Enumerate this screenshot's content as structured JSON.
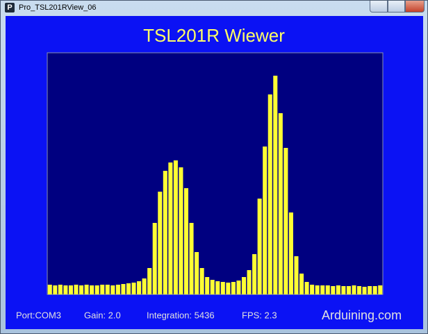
{
  "window": {
    "title": "Pro_TSL201RView_06",
    "icon": "P"
  },
  "chart_data": {
    "type": "bar",
    "title": "TSL201R Wiewer",
    "categories": [
      null,
      null,
      null,
      null,
      null,
      null,
      null,
      null,
      null,
      null,
      null,
      null,
      null,
      null,
      null,
      null,
      null,
      null,
      null,
      null,
      null,
      null,
      null,
      null,
      null,
      null,
      null,
      null,
      null,
      null,
      null,
      null,
      null,
      null,
      null,
      null,
      null,
      null,
      null,
      null,
      null,
      null,
      null,
      null,
      null,
      null,
      null,
      null,
      null,
      null,
      null,
      null,
      null,
      null,
      null,
      null,
      null,
      null,
      null,
      null,
      null,
      null,
      null,
      null
    ],
    "values": [
      14,
      13,
      14,
      13,
      13,
      14,
      13,
      14,
      13,
      13,
      14,
      14,
      13,
      14,
      15,
      16,
      17,
      19,
      23,
      38,
      103,
      148,
      178,
      190,
      193,
      183,
      153,
      103,
      61,
      38,
      25,
      21,
      19,
      18,
      17,
      18,
      20,
      25,
      35,
      58,
      138,
      213,
      288,
      315,
      261,
      211,
      118,
      55,
      30,
      18,
      14,
      13,
      13,
      13,
      12,
      13,
      12,
      12,
      13,
      12,
      11,
      12,
      12,
      13
    ],
    "color": "#ffff33",
    "ylim": [
      0,
      348
    ]
  },
  "status": {
    "port": "Port:COM3",
    "gain": "Gain: 2.0",
    "integration": "Integration: 5436",
    "fps": "FPS: 2.3",
    "site": "Arduining.com"
  }
}
